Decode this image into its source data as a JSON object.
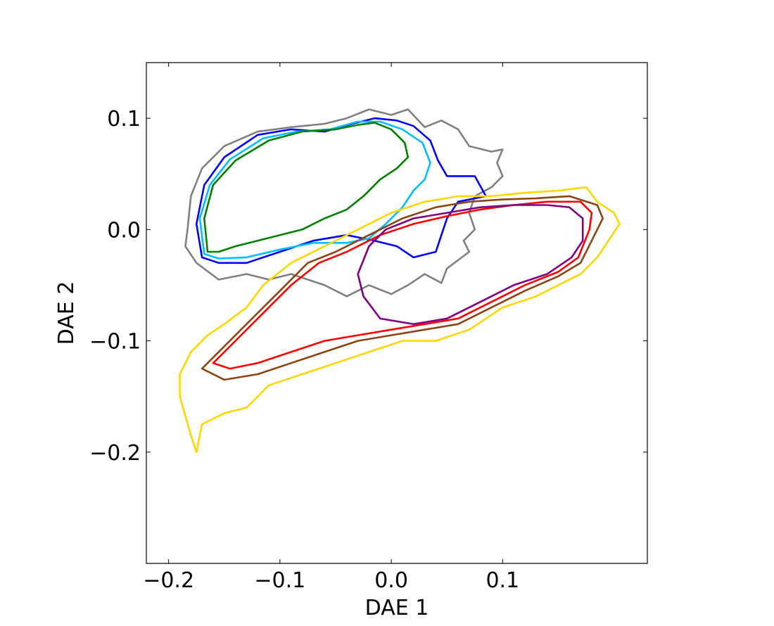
{
  "chart_data": {
    "type": "contour",
    "title": "",
    "xlabel": "DAE 1",
    "ylabel": "DAE 2",
    "xlim": [
      -0.22,
      0.23
    ],
    "ylim": [
      -0.3,
      0.15
    ],
    "xticks": [
      -0.2,
      -0.1,
      0.0,
      0.1
    ],
    "xtick_labels": [
      "−0.2",
      "−0.1",
      "0.0",
      "0.1"
    ],
    "yticks": [
      0.1,
      0.0,
      -0.1,
      -0.2
    ],
    "ytick_labels": [
      "0.1",
      "0.0",
      "−0.1",
      "−0.2"
    ],
    "grid": false,
    "legend": "none",
    "series": [
      {
        "color": "#808080",
        "points": [
          [
            -0.183,
            0.0
          ],
          [
            -0.18,
            0.03
          ],
          [
            -0.17,
            0.055
          ],
          [
            -0.15,
            0.075
          ],
          [
            -0.12,
            0.088
          ],
          [
            -0.09,
            0.092
          ],
          [
            -0.06,
            0.095
          ],
          [
            -0.04,
            0.1
          ],
          [
            -0.02,
            0.108
          ],
          [
            0.0,
            0.103
          ],
          [
            0.015,
            0.108
          ],
          [
            0.03,
            0.092
          ],
          [
            0.045,
            0.098
          ],
          [
            0.06,
            0.09
          ],
          [
            0.07,
            0.075
          ],
          [
            0.09,
            0.07
          ],
          [
            0.1,
            0.072
          ],
          [
            0.095,
            0.06
          ],
          [
            0.1,
            0.048
          ],
          [
            0.09,
            0.038
          ],
          [
            0.075,
            0.03
          ],
          [
            0.07,
            0.015
          ],
          [
            0.075,
            0.0
          ],
          [
            0.065,
            -0.01
          ],
          [
            0.07,
            -0.02
          ],
          [
            0.05,
            -0.035
          ],
          [
            0.045,
            -0.048
          ],
          [
            0.03,
            -0.04
          ],
          [
            0.015,
            -0.05
          ],
          [
            0.0,
            -0.058
          ],
          [
            -0.02,
            -0.05
          ],
          [
            -0.04,
            -0.06
          ],
          [
            -0.06,
            -0.05
          ],
          [
            -0.09,
            -0.04
          ],
          [
            -0.11,
            -0.045
          ],
          [
            -0.13,
            -0.04
          ],
          [
            -0.155,
            -0.045
          ],
          [
            -0.175,
            -0.03
          ],
          [
            -0.185,
            -0.015
          ],
          [
            -0.183,
            0.0
          ]
        ]
      },
      {
        "color": "#0000ff",
        "points": [
          [
            -0.17,
            -0.025
          ],
          [
            -0.175,
            0.005
          ],
          [
            -0.168,
            0.04
          ],
          [
            -0.15,
            0.065
          ],
          [
            -0.12,
            0.085
          ],
          [
            -0.09,
            0.09
          ],
          [
            -0.06,
            0.088
          ],
          [
            -0.035,
            0.095
          ],
          [
            -0.015,
            0.1
          ],
          [
            0.005,
            0.098
          ],
          [
            0.02,
            0.093
          ],
          [
            0.035,
            0.08
          ],
          [
            0.042,
            0.062
          ],
          [
            0.05,
            0.048
          ],
          [
            0.075,
            0.048
          ],
          [
            0.085,
            0.03
          ],
          [
            0.06,
            0.025
          ],
          [
            0.05,
            0.01
          ],
          [
            0.045,
            -0.005
          ],
          [
            0.04,
            -0.02
          ],
          [
            0.02,
            -0.025
          ],
          [
            0.005,
            -0.015
          ],
          [
            -0.015,
            -0.01
          ],
          [
            -0.04,
            -0.005
          ],
          [
            -0.07,
            -0.01
          ],
          [
            -0.1,
            -0.02
          ],
          [
            -0.13,
            -0.03
          ],
          [
            -0.155,
            -0.03
          ],
          [
            -0.17,
            -0.025
          ]
        ]
      },
      {
        "color": "#00bfff",
        "points": [
          [
            -0.168,
            -0.022
          ],
          [
            -0.172,
            0.01
          ],
          [
            -0.163,
            0.04
          ],
          [
            -0.145,
            0.063
          ],
          [
            -0.115,
            0.082
          ],
          [
            -0.085,
            0.088
          ],
          [
            -0.055,
            0.09
          ],
          [
            -0.03,
            0.097
          ],
          [
            -0.01,
            0.097
          ],
          [
            0.01,
            0.09
          ],
          [
            0.028,
            0.078
          ],
          [
            0.035,
            0.06
          ],
          [
            0.03,
            0.045
          ],
          [
            0.02,
            0.035
          ],
          [
            0.01,
            0.02
          ],
          [
            -0.005,
            0.005
          ],
          [
            -0.02,
            -0.008
          ],
          [
            -0.04,
            -0.012
          ],
          [
            -0.07,
            -0.012
          ],
          [
            -0.1,
            -0.018
          ],
          [
            -0.13,
            -0.025
          ],
          [
            -0.155,
            -0.026
          ],
          [
            -0.168,
            -0.022
          ]
        ]
      },
      {
        "color": "#008000",
        "points": [
          [
            -0.165,
            -0.02
          ],
          [
            -0.168,
            0.01
          ],
          [
            -0.16,
            0.04
          ],
          [
            -0.14,
            0.062
          ],
          [
            -0.11,
            0.08
          ],
          [
            -0.08,
            0.088
          ],
          [
            -0.05,
            0.09
          ],
          [
            -0.03,
            0.094
          ],
          [
            -0.015,
            0.096
          ],
          [
            0.0,
            0.09
          ],
          [
            0.012,
            0.078
          ],
          [
            0.015,
            0.065
          ],
          [
            0.005,
            0.055
          ],
          [
            -0.01,
            0.045
          ],
          [
            -0.025,
            0.03
          ],
          [
            -0.04,
            0.018
          ],
          [
            -0.06,
            0.01
          ],
          [
            -0.08,
            0.0
          ],
          [
            -0.1,
            -0.005
          ],
          [
            -0.12,
            -0.01
          ],
          [
            -0.14,
            -0.015
          ],
          [
            -0.155,
            -0.02
          ],
          [
            -0.165,
            -0.02
          ]
        ]
      },
      {
        "color": "#ffd700",
        "points": [
          [
            -0.19,
            -0.13
          ],
          [
            -0.18,
            -0.11
          ],
          [
            -0.165,
            -0.095
          ],
          [
            -0.15,
            -0.085
          ],
          [
            -0.13,
            -0.07
          ],
          [
            -0.115,
            -0.05
          ],
          [
            -0.09,
            -0.03
          ],
          [
            -0.06,
            -0.015
          ],
          [
            -0.03,
            0.0
          ],
          [
            0.0,
            0.015
          ],
          [
            0.03,
            0.025
          ],
          [
            0.06,
            0.03
          ],
          [
            0.09,
            0.03
          ],
          [
            0.12,
            0.033
          ],
          [
            0.15,
            0.035
          ],
          [
            0.175,
            0.038
          ],
          [
            0.185,
            0.025
          ],
          [
            0.2,
            0.015
          ],
          [
            0.205,
            0.005
          ],
          [
            0.195,
            -0.01
          ],
          [
            0.185,
            -0.025
          ],
          [
            0.17,
            -0.04
          ],
          [
            0.15,
            -0.05
          ],
          [
            0.13,
            -0.06
          ],
          [
            0.1,
            -0.07
          ],
          [
            0.07,
            -0.09
          ],
          [
            0.04,
            -0.1
          ],
          [
            0.01,
            -0.1
          ],
          [
            -0.02,
            -0.11
          ],
          [
            -0.05,
            -0.12
          ],
          [
            -0.08,
            -0.13
          ],
          [
            -0.11,
            -0.14
          ],
          [
            -0.13,
            -0.16
          ],
          [
            -0.15,
            -0.165
          ],
          [
            -0.17,
            -0.175
          ],
          [
            -0.175,
            -0.2
          ],
          [
            -0.18,
            -0.185
          ],
          [
            -0.19,
            -0.15
          ],
          [
            -0.19,
            -0.13
          ]
        ]
      },
      {
        "color": "#8b4513",
        "points": [
          [
            -0.17,
            -0.125
          ],
          [
            -0.155,
            -0.11
          ],
          [
            -0.14,
            -0.095
          ],
          [
            -0.12,
            -0.075
          ],
          [
            -0.1,
            -0.055
          ],
          [
            -0.075,
            -0.03
          ],
          [
            -0.05,
            -0.02
          ],
          [
            -0.02,
            -0.005
          ],
          [
            0.01,
            0.01
          ],
          [
            0.04,
            0.02
          ],
          [
            0.07,
            0.025
          ],
          [
            0.1,
            0.027
          ],
          [
            0.13,
            0.028
          ],
          [
            0.16,
            0.03
          ],
          [
            0.185,
            0.022
          ],
          [
            0.19,
            0.01
          ],
          [
            0.18,
            -0.01
          ],
          [
            0.17,
            -0.03
          ],
          [
            0.15,
            -0.042
          ],
          [
            0.12,
            -0.055
          ],
          [
            0.09,
            -0.07
          ],
          [
            0.06,
            -0.085
          ],
          [
            0.03,
            -0.09
          ],
          [
            0.0,
            -0.095
          ],
          [
            -0.03,
            -0.1
          ],
          [
            -0.06,
            -0.11
          ],
          [
            -0.09,
            -0.12
          ],
          [
            -0.12,
            -0.13
          ],
          [
            -0.15,
            -0.135
          ],
          [
            -0.17,
            -0.125
          ]
        ]
      },
      {
        "color": "#ff0000",
        "points": [
          [
            -0.16,
            -0.12
          ],
          [
            -0.145,
            -0.105
          ],
          [
            -0.13,
            -0.09
          ],
          [
            -0.11,
            -0.07
          ],
          [
            -0.09,
            -0.05
          ],
          [
            -0.065,
            -0.03
          ],
          [
            -0.04,
            -0.02
          ],
          [
            -0.01,
            -0.005
          ],
          [
            0.02,
            0.005
          ],
          [
            0.05,
            0.012
          ],
          [
            0.08,
            0.018
          ],
          [
            0.11,
            0.022
          ],
          [
            0.14,
            0.025
          ],
          [
            0.17,
            0.025
          ],
          [
            0.18,
            0.015
          ],
          [
            0.178,
            0.0
          ],
          [
            0.168,
            -0.025
          ],
          [
            0.15,
            -0.038
          ],
          [
            0.12,
            -0.05
          ],
          [
            0.09,
            -0.065
          ],
          [
            0.06,
            -0.08
          ],
          [
            0.03,
            -0.085
          ],
          [
            0.0,
            -0.09
          ],
          [
            -0.03,
            -0.095
          ],
          [
            -0.06,
            -0.1
          ],
          [
            -0.09,
            -0.11
          ],
          [
            -0.12,
            -0.12
          ],
          [
            -0.145,
            -0.125
          ],
          [
            -0.16,
            -0.12
          ]
        ]
      },
      {
        "color": "#800080",
        "points": [
          [
            -0.03,
            -0.04
          ],
          [
            -0.02,
            -0.015
          ],
          [
            -0.005,
            0.0
          ],
          [
            0.02,
            0.01
          ],
          [
            0.05,
            0.015
          ],
          [
            0.08,
            0.02
          ],
          [
            0.11,
            0.022
          ],
          [
            0.14,
            0.022
          ],
          [
            0.16,
            0.02
          ],
          [
            0.172,
            0.01
          ],
          [
            0.172,
            -0.01
          ],
          [
            0.162,
            -0.025
          ],
          [
            0.14,
            -0.04
          ],
          [
            0.11,
            -0.05
          ],
          [
            0.08,
            -0.065
          ],
          [
            0.05,
            -0.08
          ],
          [
            0.02,
            -0.085
          ],
          [
            -0.01,
            -0.08
          ],
          [
            -0.025,
            -0.06
          ],
          [
            -0.03,
            -0.04
          ]
        ]
      }
    ]
  }
}
